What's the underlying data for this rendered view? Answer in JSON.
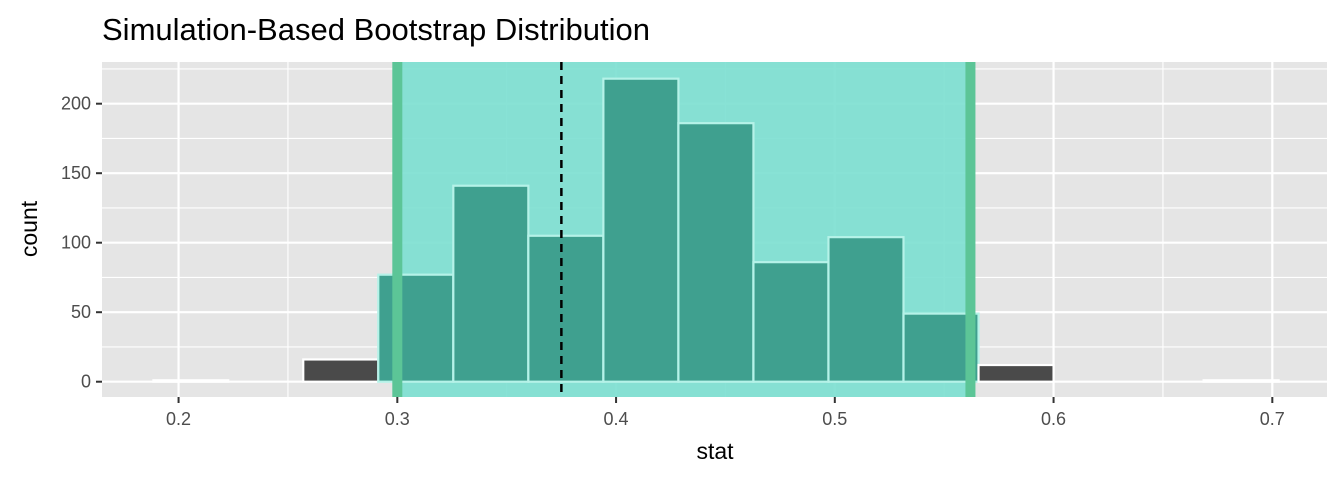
{
  "chart_data": {
    "type": "bar",
    "title": "Simulation-Based Bootstrap Distribution",
    "xlabel": "stat",
    "ylabel": "count",
    "xlim": [
      0.165,
      0.725
    ],
    "ylim": [
      -11,
      230
    ],
    "x_ticks": [
      0.2,
      0.3,
      0.4,
      0.5,
      0.6,
      0.7
    ],
    "x_tick_labels": [
      "0.2",
      "0.3",
      "0.4",
      "0.5",
      "0.6",
      "0.7"
    ],
    "y_ticks": [
      0,
      50,
      100,
      150,
      200
    ],
    "y_tick_labels": [
      "0",
      "50",
      "100",
      "150",
      "200"
    ],
    "bins": [
      {
        "x0": 0.1885,
        "x1": 0.2227,
        "count": 1
      },
      {
        "x0": 0.2227,
        "x1": 0.257,
        "count": 0
      },
      {
        "x0": 0.257,
        "x1": 0.2913,
        "count": 16
      },
      {
        "x0": 0.2913,
        "x1": 0.3256,
        "count": 77
      },
      {
        "x0": 0.3256,
        "x1": 0.3599,
        "count": 141
      },
      {
        "x0": 0.3599,
        "x1": 0.3942,
        "count": 105
      },
      {
        "x0": 0.3942,
        "x1": 0.4285,
        "count": 218
      },
      {
        "x0": 0.4285,
        "x1": 0.4628,
        "count": 186
      },
      {
        "x0": 0.4628,
        "x1": 0.4971,
        "count": 86
      },
      {
        "x0": 0.4971,
        "x1": 0.5314,
        "count": 104
      },
      {
        "x0": 0.5314,
        "x1": 0.5657,
        "count": 49
      },
      {
        "x0": 0.5657,
        "x1": 0.6,
        "count": 12
      },
      {
        "x0": 0.6,
        "x1": 0.6343,
        "count": 0
      },
      {
        "x0": 0.6343,
        "x1": 0.6686,
        "count": 0
      },
      {
        "x0": 0.6686,
        "x1": 0.7029,
        "count": 1
      }
    ],
    "confidence_interval": {
      "lower": 0.3,
      "upper": 0.562
    },
    "observed_stat": 0.375,
    "grid": true,
    "legend": "none",
    "colors": {
      "panel_background": "#e5e5e5",
      "grid": "#ffffff",
      "bar_fill": "#4a4a4a",
      "bar_outline": "#ffffff",
      "ci_shade": "#7fe0d2",
      "ci_bar_fill": "#3fa08f",
      "ci_bar_outline": "#b5f2e8",
      "ci_endpoint_line": "#5cc597",
      "observed_line": "#000000"
    }
  }
}
